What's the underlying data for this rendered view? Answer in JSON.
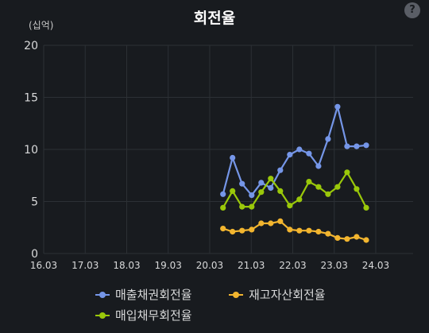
{
  "panel": {
    "title": "회전율",
    "help_icon": "?",
    "unit_label": "(십억)"
  },
  "chart_data": {
    "type": "line",
    "title": "회전율",
    "xlabel": "",
    "ylabel": "(십억)",
    "x_ticks": [
      "16.03",
      "17.03",
      "18.03",
      "19.03",
      "20.03",
      "21.03",
      "22.03",
      "23.03",
      "24.03"
    ],
    "y_ticks": [
      0,
      5,
      10,
      15,
      20
    ],
    "xlim": [
      2016.0,
      2024.9
    ],
    "ylim": [
      0,
      20
    ],
    "grid": true,
    "legend_position": "bottom",
    "x": [
      2020.32,
      2020.55,
      2020.78,
      2021.01,
      2021.24,
      2021.47,
      2021.7,
      2021.93,
      2022.16,
      2022.39,
      2022.62,
      2022.85,
      2023.08,
      2023.31,
      2023.54,
      2023.77,
      2024.0
    ],
    "series": [
      {
        "name": "매출채권회전율",
        "color": "#7596e8",
        "values": [
          5.7,
          9.2,
          6.7,
          5.6,
          6.8,
          6.3,
          8.0,
          9.5,
          10.0,
          9.6,
          8.4,
          11.0,
          14.1,
          10.3,
          10.3,
          10.4,
          null
        ]
      },
      {
        "name": "재고자산회전율",
        "color": "#f2b52f",
        "values": [
          2.4,
          2.1,
          2.2,
          2.3,
          2.9,
          2.9,
          3.1,
          2.3,
          2.2,
          2.2,
          2.1,
          1.9,
          1.5,
          1.4,
          1.6,
          1.3,
          null
        ]
      },
      {
        "name": "매입채무회전율",
        "color": "#9ac80a",
        "values": [
          4.4,
          6.0,
          4.5,
          4.5,
          5.9,
          7.2,
          6.0,
          4.6,
          5.2,
          6.9,
          6.4,
          5.7,
          6.4,
          7.8,
          6.2,
          4.4,
          null
        ]
      }
    ]
  }
}
